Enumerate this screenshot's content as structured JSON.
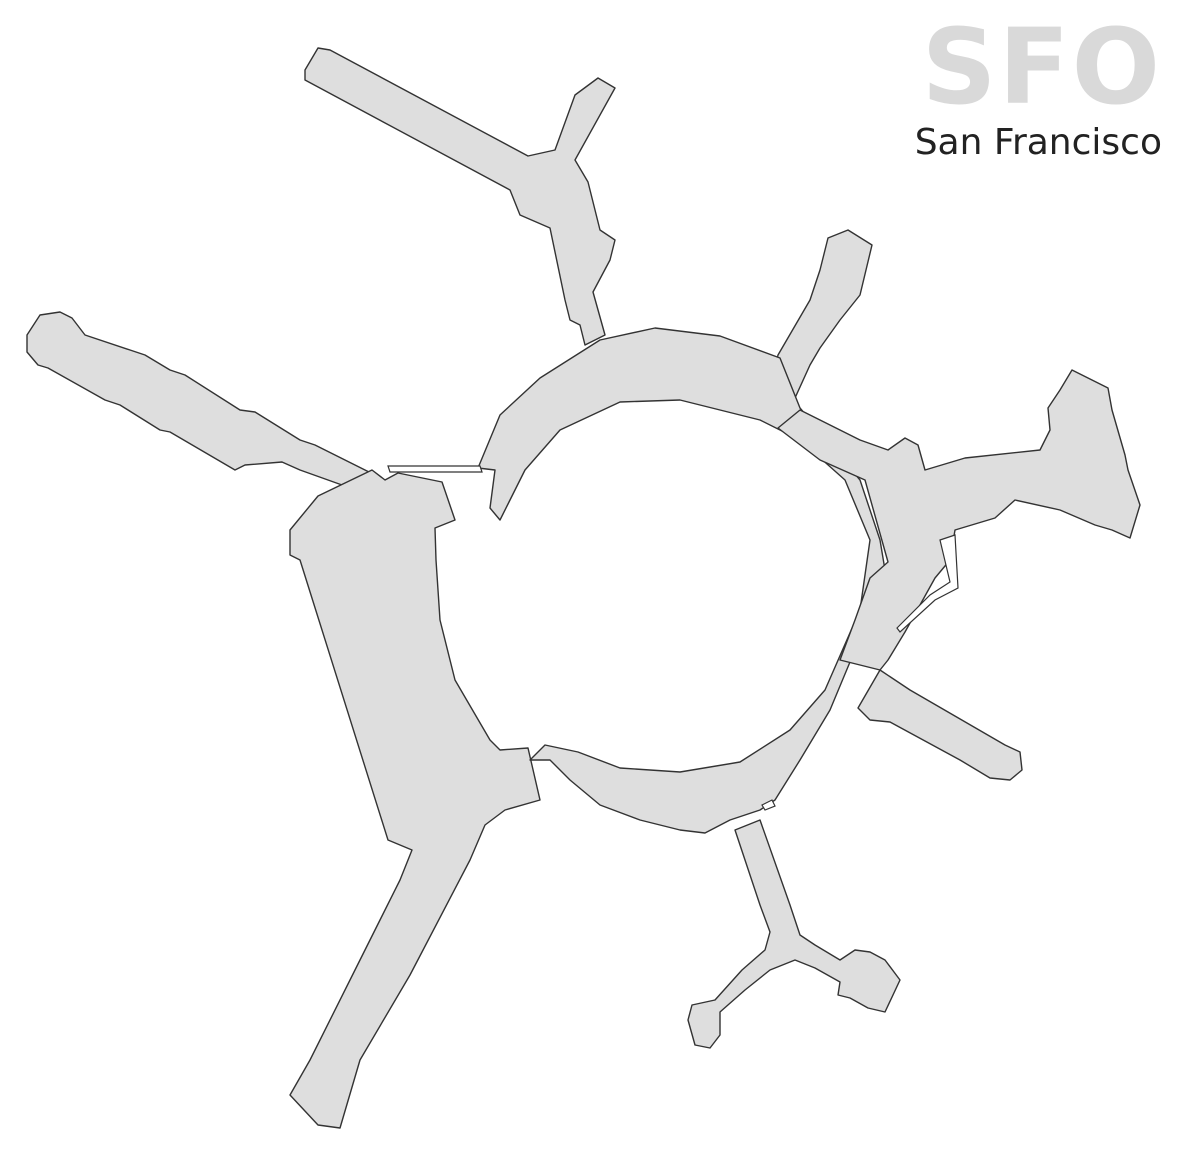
{
  "header": {
    "airport_code": "SFO",
    "city": "San Francisco"
  },
  "map": {
    "fill_color": "#dedede",
    "outline_color": "#333333",
    "background_color": "#ffffff",
    "code_color": "#d9d9d9",
    "city_color": "#222222"
  }
}
